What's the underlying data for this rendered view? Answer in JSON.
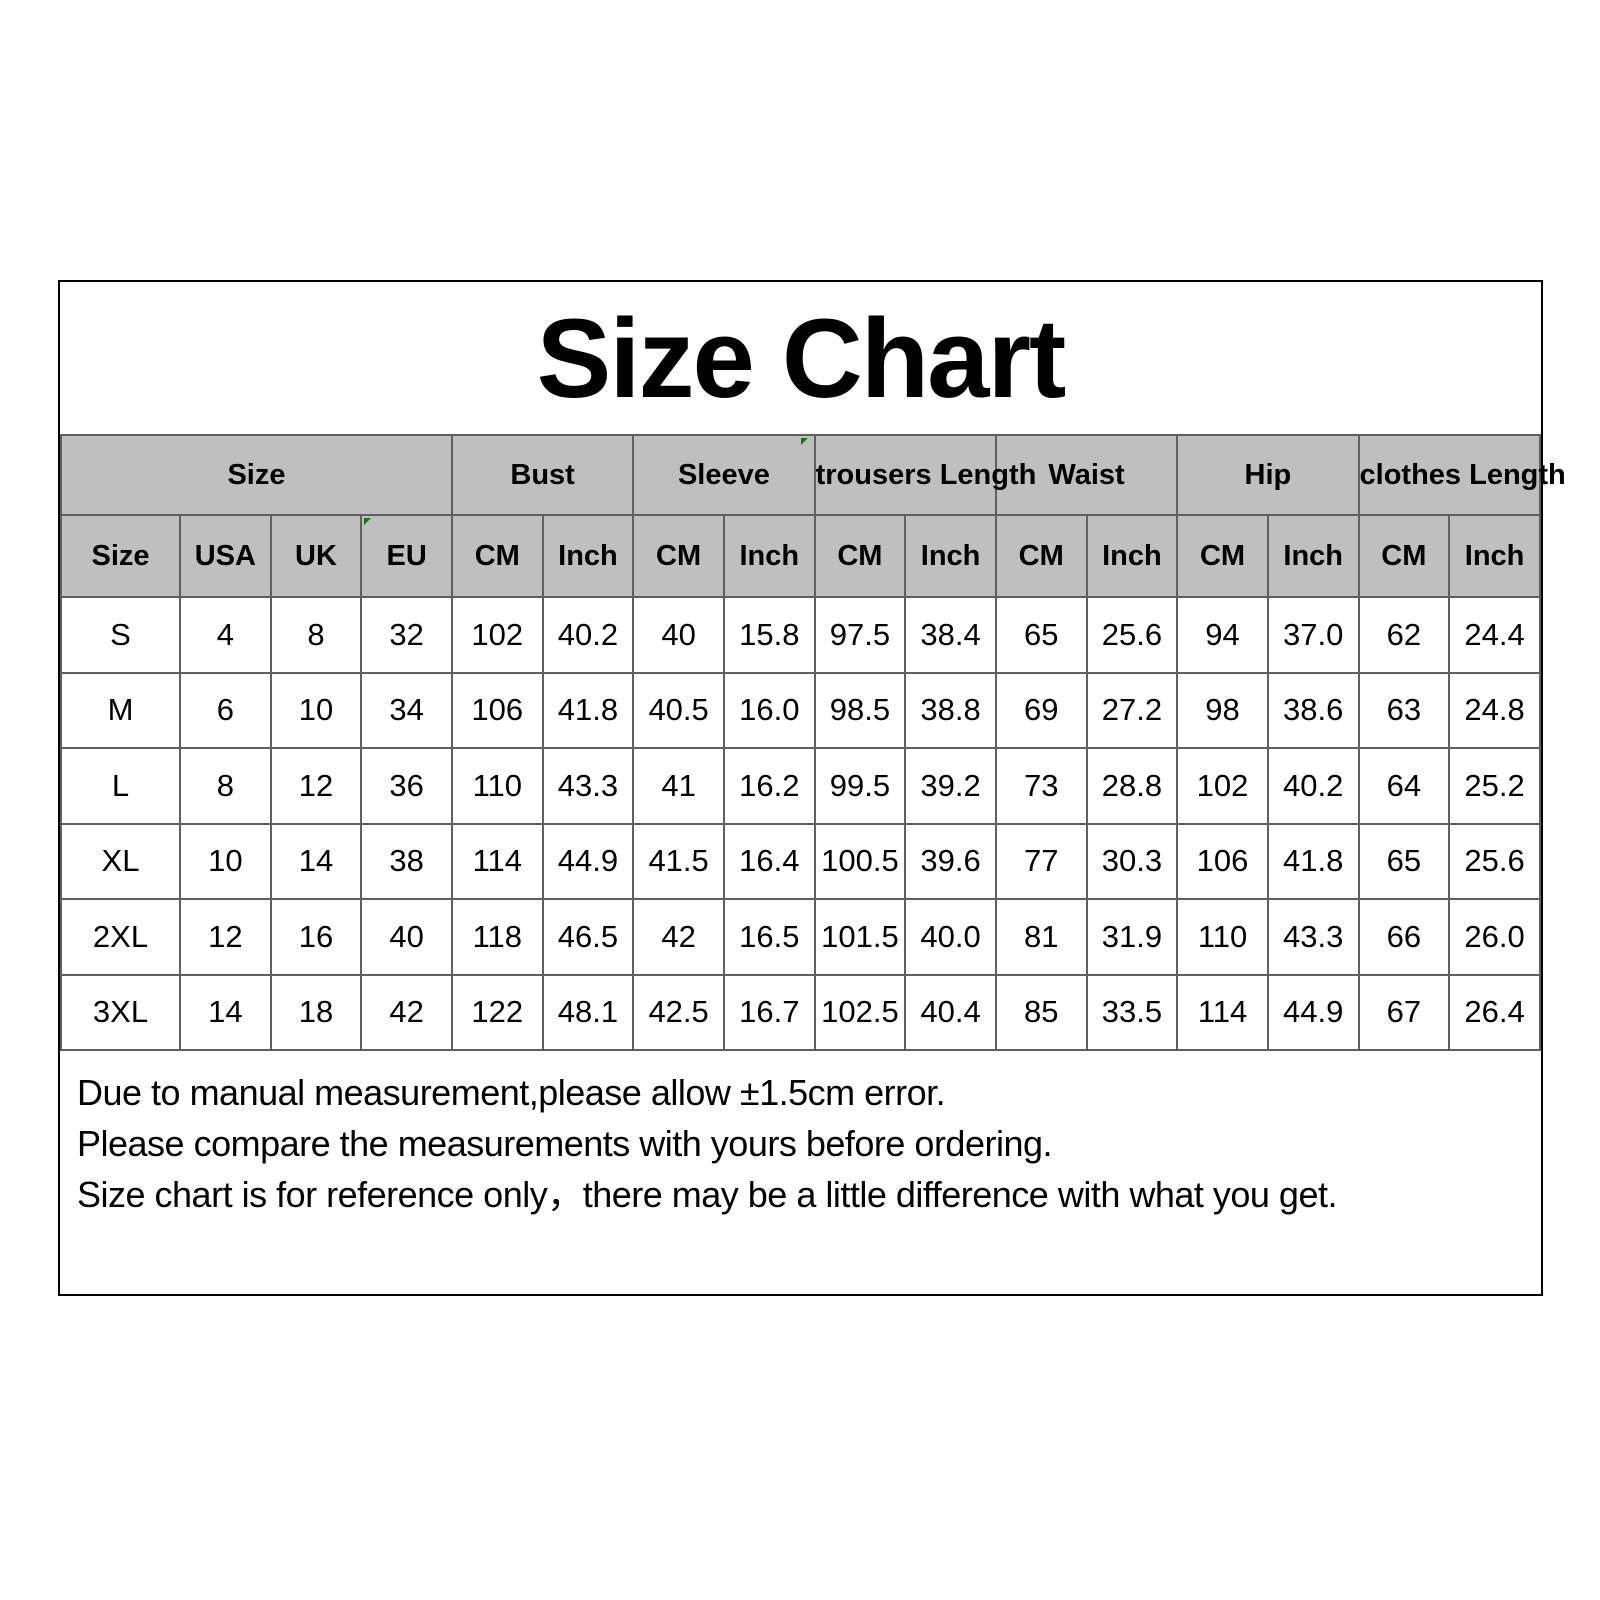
{
  "chart_data": {
    "type": "table",
    "title": "Size Chart",
    "group_columns": [
      {
        "label": "Size",
        "span": 4
      },
      {
        "label": "Bust",
        "span": 2
      },
      {
        "label": "Sleeve",
        "span": 2
      },
      {
        "label": "trousers Length",
        "span": 2
      },
      {
        "label": "Waist",
        "span": 2
      },
      {
        "label": "Hip",
        "span": 2
      },
      {
        "label": "clothes Length",
        "span": 2
      }
    ],
    "columns": [
      "Size",
      "USA",
      "UK",
      "EU",
      "CM",
      "Inch",
      "CM",
      "Inch",
      "CM",
      "Inch",
      "CM",
      "Inch",
      "CM",
      "Inch",
      "CM",
      "Inch"
    ],
    "rows": [
      [
        "S",
        "4",
        "8",
        "32",
        "102",
        "40.2",
        "40",
        "15.8",
        "97.5",
        "38.4",
        "65",
        "25.6",
        "94",
        "37.0",
        "62",
        "24.4"
      ],
      [
        "M",
        "6",
        "10",
        "34",
        "106",
        "41.8",
        "40.5",
        "16.0",
        "98.5",
        "38.8",
        "69",
        "27.2",
        "98",
        "38.6",
        "63",
        "24.8"
      ],
      [
        "L",
        "8",
        "12",
        "36",
        "110",
        "43.3",
        "41",
        "16.2",
        "99.5",
        "39.2",
        "73",
        "28.8",
        "102",
        "40.2",
        "64",
        "25.2"
      ],
      [
        "XL",
        "10",
        "14",
        "38",
        "114",
        "44.9",
        "41.5",
        "16.4",
        "100.5",
        "39.6",
        "77",
        "30.3",
        "106",
        "41.8",
        "65",
        "25.6"
      ],
      [
        "2XL",
        "12",
        "16",
        "40",
        "118",
        "46.5",
        "42",
        "16.5",
        "101.5",
        "40.0",
        "81",
        "31.9",
        "110",
        "43.3",
        "66",
        "26.0"
      ],
      [
        "3XL",
        "14",
        "18",
        "42",
        "122",
        "48.1",
        "42.5",
        "16.7",
        "102.5",
        "40.4",
        "85",
        "33.5",
        "114",
        "44.9",
        "67",
        "26.4"
      ]
    ]
  },
  "notes": [
    "Due to manual measurement,please allow ±1.5cm error.",
    "Please compare the measurements with yours before ordering.",
    "Size chart is for reference only，there may be a little difference with what you get."
  ],
  "colors": {
    "header_bg": "#bfbfbf",
    "grid_border": "#5f5f5f",
    "outer_border": "#000000",
    "marker_green": "#0b7d0b",
    "text": "#000000"
  }
}
